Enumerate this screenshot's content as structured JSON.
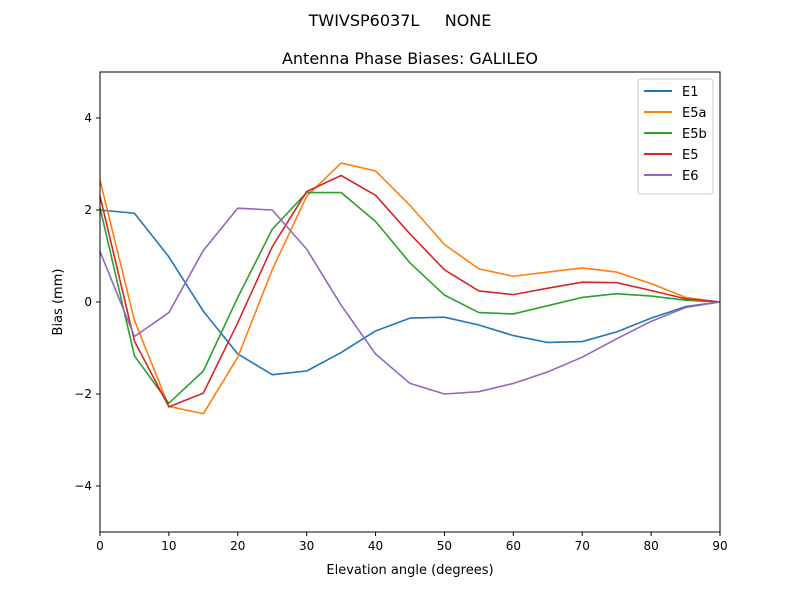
{
  "suptitle": "TWIVSP6037L     NONE",
  "chart_data": {
    "type": "line",
    "title": "Antenna Phase Biases: GALILEO",
    "xlabel": "Elevation angle (degrees)",
    "ylabel": "Bias (mm)",
    "xlim": [
      0,
      90
    ],
    "ylim": [
      -5,
      5
    ],
    "xticks": [
      0,
      10,
      20,
      30,
      40,
      50,
      60,
      70,
      80,
      90
    ],
    "yticks": [
      -4,
      -2,
      0,
      2,
      4
    ],
    "ytick_labels": [
      "−4",
      "−2",
      "0",
      "2",
      "4"
    ],
    "grid": false,
    "legend_position": "top-right",
    "x": [
      0,
      5,
      10,
      15,
      20,
      25,
      30,
      35,
      40,
      45,
      50,
      55,
      60,
      65,
      70,
      75,
      80,
      85,
      90
    ],
    "series": [
      {
        "name": "E1",
        "color": "#1f77b4",
        "values": [
          2.0,
          1.93,
          0.98,
          -0.2,
          -1.13,
          -1.58,
          -1.5,
          -1.1,
          -0.63,
          -0.35,
          -0.33,
          -0.5,
          -0.73,
          -0.88,
          -0.86,
          -0.65,
          -0.35,
          -0.1,
          0.0
        ]
      },
      {
        "name": "E5a",
        "color": "#ff7f0e",
        "values": [
          2.65,
          -0.4,
          -2.27,
          -2.43,
          -1.2,
          0.7,
          2.3,
          3.02,
          2.85,
          2.1,
          1.25,
          0.72,
          0.56,
          0.65,
          0.74,
          0.65,
          0.4,
          0.1,
          0.0
        ]
      },
      {
        "name": "E5b",
        "color": "#2ca02c",
        "values": [
          2.05,
          -1.17,
          -2.2,
          -1.5,
          0.1,
          1.58,
          2.38,
          2.38,
          1.75,
          0.85,
          0.15,
          -0.23,
          -0.26,
          -0.08,
          0.1,
          0.18,
          0.13,
          0.04,
          0.0
        ]
      },
      {
        "name": "E5",
        "color": "#d62728",
        "values": [
          2.3,
          -0.85,
          -2.28,
          -1.98,
          -0.45,
          1.2,
          2.4,
          2.75,
          2.32,
          1.48,
          0.7,
          0.24,
          0.16,
          0.3,
          0.43,
          0.42,
          0.25,
          0.07,
          0.0
        ]
      },
      {
        "name": "E6",
        "color": "#9467bd",
        "values": [
          1.1,
          -0.75,
          -0.23,
          1.12,
          2.04,
          2.0,
          1.15,
          -0.07,
          -1.13,
          -1.77,
          -2.0,
          -1.95,
          -1.77,
          -1.52,
          -1.2,
          -0.8,
          -0.42,
          -0.12,
          0.0
        ]
      }
    ]
  }
}
